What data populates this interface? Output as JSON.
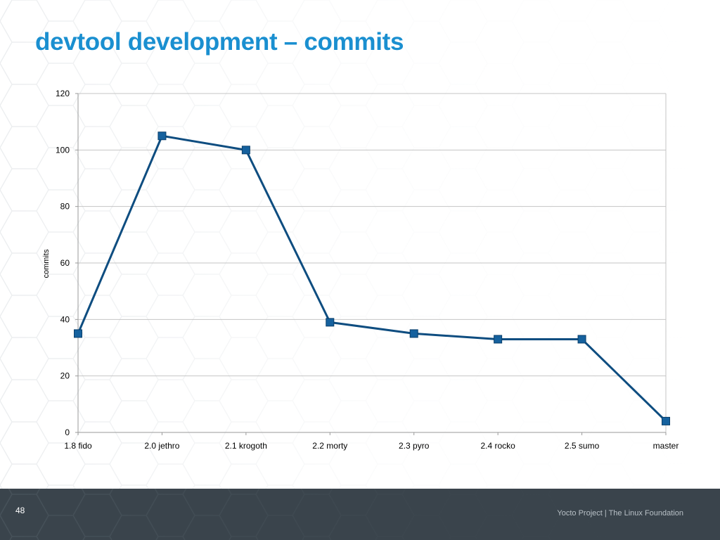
{
  "slide": {
    "title": "devtool development – commits",
    "number": "48",
    "footer": "Yocto Project | The Linux Foundation"
  },
  "colors": {
    "title": "#1a8fd0",
    "line": "#0e4d80",
    "marker": "#15619e",
    "grid": "#c4c4c4",
    "footer_bg": "#3a444c"
  },
  "chart_data": {
    "type": "line",
    "title": "",
    "xlabel": "",
    "ylabel": "commits",
    "categories": [
      "1.8 fido",
      "2.0 jethro",
      "2.1 krogoth",
      "2.2 morty",
      "2.3 pyro",
      "2.4 rocko",
      "2.5 sumo",
      "master"
    ],
    "series": [
      {
        "values": [
          35,
          105,
          100,
          39,
          35,
          33,
          33,
          4
        ]
      }
    ],
    "ylim": [
      0,
      120
    ],
    "yticks": [
      0,
      20,
      40,
      60,
      80,
      100,
      120
    ],
    "grid": true,
    "legend": "none",
    "marker": "square"
  }
}
